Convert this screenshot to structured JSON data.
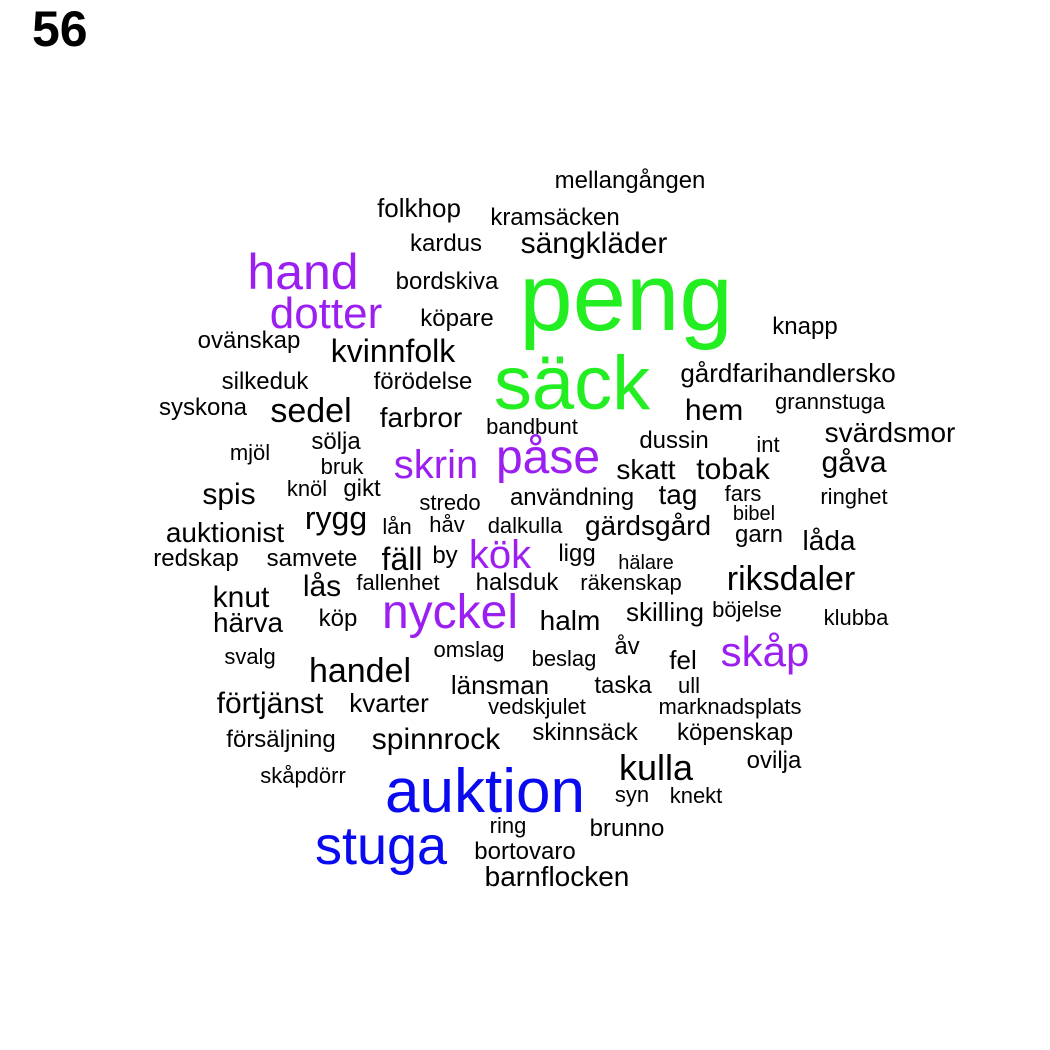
{
  "page_number": "56",
  "colors": {
    "green": "#22ee22",
    "purple": "#9b1ff0",
    "blue": "#0a0af0",
    "black": "#000000"
  },
  "words": [
    {
      "text": "peng",
      "color": "green"
    },
    {
      "text": "säck",
      "color": "green"
    },
    {
      "text": "hand",
      "color": "purple"
    },
    {
      "text": "dotter",
      "color": "purple"
    },
    {
      "text": "påse",
      "color": "purple"
    },
    {
      "text": "skrin",
      "color": "purple"
    },
    {
      "text": "kök",
      "color": "purple"
    },
    {
      "text": "nyckel",
      "color": "purple"
    },
    {
      "text": "skåp",
      "color": "purple"
    },
    {
      "text": "auktion",
      "color": "blue"
    },
    {
      "text": "stuga",
      "color": "blue"
    },
    {
      "text": "mellangången",
      "color": "black"
    },
    {
      "text": "folkhop",
      "color": "black"
    },
    {
      "text": "kramsäcken",
      "color": "black"
    },
    {
      "text": "kardus",
      "color": "black"
    },
    {
      "text": "sängkläder",
      "color": "black"
    },
    {
      "text": "bordskiva",
      "color": "black"
    },
    {
      "text": "köpare",
      "color": "black"
    },
    {
      "text": "knapp",
      "color": "black"
    },
    {
      "text": "ovänskap",
      "color": "black"
    },
    {
      "text": "kvinnfolk",
      "color": "black"
    },
    {
      "text": "gårdfarihandlersko",
      "color": "black"
    },
    {
      "text": "silkeduk",
      "color": "black"
    },
    {
      "text": "förödelse",
      "color": "black"
    },
    {
      "text": "syskona",
      "color": "black"
    },
    {
      "text": "sedel",
      "color": "black"
    },
    {
      "text": "farbror",
      "color": "black"
    },
    {
      "text": "bandbunt",
      "color": "black"
    },
    {
      "text": "hem",
      "color": "black"
    },
    {
      "text": "grannstuga",
      "color": "black"
    },
    {
      "text": "svärdsmor",
      "color": "black"
    },
    {
      "text": "sölja",
      "color": "black"
    },
    {
      "text": "mjöl",
      "color": "black"
    },
    {
      "text": "dussin",
      "color": "black"
    },
    {
      "text": "int",
      "color": "black"
    },
    {
      "text": "bruk",
      "color": "black"
    },
    {
      "text": "skatt",
      "color": "black"
    },
    {
      "text": "tobak",
      "color": "black"
    },
    {
      "text": "gåva",
      "color": "black"
    },
    {
      "text": "spis",
      "color": "black"
    },
    {
      "text": "knöl",
      "color": "black"
    },
    {
      "text": "gikt",
      "color": "black"
    },
    {
      "text": "stredo",
      "color": "black"
    },
    {
      "text": "användning",
      "color": "black"
    },
    {
      "text": "tag",
      "color": "black"
    },
    {
      "text": "fars",
      "color": "black"
    },
    {
      "text": "ringhet",
      "color": "black"
    },
    {
      "text": "rygg",
      "color": "black"
    },
    {
      "text": "bibel",
      "color": "black"
    },
    {
      "text": "auktionist",
      "color": "black"
    },
    {
      "text": "lån",
      "color": "black"
    },
    {
      "text": "håv",
      "color": "black"
    },
    {
      "text": "dalkulla",
      "color": "black"
    },
    {
      "text": "gärdsgård",
      "color": "black"
    },
    {
      "text": "garn",
      "color": "black"
    },
    {
      "text": "låda",
      "color": "black"
    },
    {
      "text": "redskap",
      "color": "black"
    },
    {
      "text": "samvete",
      "color": "black"
    },
    {
      "text": "fäll",
      "color": "black"
    },
    {
      "text": "by",
      "color": "black"
    },
    {
      "text": "ligg",
      "color": "black"
    },
    {
      "text": "hälare",
      "color": "black"
    },
    {
      "text": "lås",
      "color": "black"
    },
    {
      "text": "fallenhet",
      "color": "black"
    },
    {
      "text": "halsduk",
      "color": "black"
    },
    {
      "text": "räkenskap",
      "color": "black"
    },
    {
      "text": "riksdaler",
      "color": "black"
    },
    {
      "text": "knut",
      "color": "black"
    },
    {
      "text": "köp",
      "color": "black"
    },
    {
      "text": "halm",
      "color": "black"
    },
    {
      "text": "skilling",
      "color": "black"
    },
    {
      "text": "böjelse",
      "color": "black"
    },
    {
      "text": "klubba",
      "color": "black"
    },
    {
      "text": "härva",
      "color": "black"
    },
    {
      "text": "svalg",
      "color": "black"
    },
    {
      "text": "omslag",
      "color": "black"
    },
    {
      "text": "åv",
      "color": "black"
    },
    {
      "text": "beslag",
      "color": "black"
    },
    {
      "text": "fel",
      "color": "black"
    },
    {
      "text": "handel",
      "color": "black"
    },
    {
      "text": "länsman",
      "color": "black"
    },
    {
      "text": "taska",
      "color": "black"
    },
    {
      "text": "ull",
      "color": "black"
    },
    {
      "text": "förtjänst",
      "color": "black"
    },
    {
      "text": "kvarter",
      "color": "black"
    },
    {
      "text": "vedskjulet",
      "color": "black"
    },
    {
      "text": "marknadsplats",
      "color": "black"
    },
    {
      "text": "skinnsäck",
      "color": "black"
    },
    {
      "text": "försäljning",
      "color": "black"
    },
    {
      "text": "spinnrock",
      "color": "black"
    },
    {
      "text": "köpenskap",
      "color": "black"
    },
    {
      "text": "kulla",
      "color": "black"
    },
    {
      "text": "ovilja",
      "color": "black"
    },
    {
      "text": "skåpdörr",
      "color": "black"
    },
    {
      "text": "syn",
      "color": "black"
    },
    {
      "text": "knekt",
      "color": "black"
    },
    {
      "text": "ring",
      "color": "black"
    },
    {
      "text": "brunno",
      "color": "black"
    },
    {
      "text": "bortovaro",
      "color": "black"
    },
    {
      "text": "barnflocken",
      "color": "black"
    }
  ]
}
